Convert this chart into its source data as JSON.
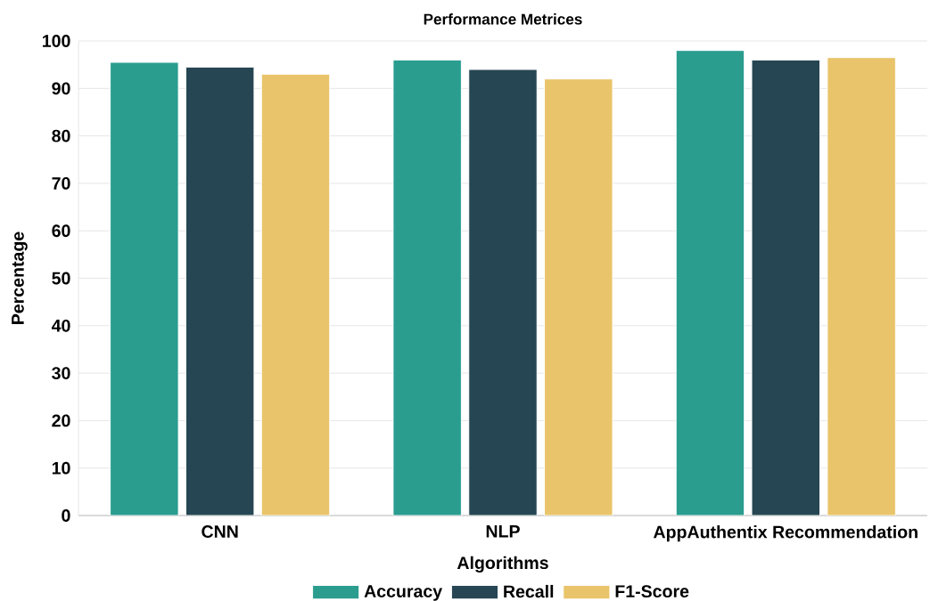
{
  "chart_data": {
    "type": "bar",
    "title": "Performance Metrices",
    "xlabel": "Algorithms",
    "ylabel": "Percentage",
    "categories": [
      "CNN",
      "NLP",
      "AppAuthentix Recommendation"
    ],
    "series": [
      {
        "name": "Accuracy",
        "color": "#2a9d8f",
        "values": [
          95.5,
          96,
          98
        ]
      },
      {
        "name": "Recall",
        "color": "#264653",
        "values": [
          94.5,
          94,
          96
        ]
      },
      {
        "name": "F1-Score",
        "color": "#e9c46a",
        "values": [
          93,
          92,
          96.5
        ]
      }
    ],
    "ylim": [
      0,
      100
    ],
    "yticks": [
      0,
      10,
      20,
      30,
      40,
      50,
      60,
      70,
      80,
      90,
      100
    ],
    "grid": "y",
    "legend": "bottom"
  }
}
